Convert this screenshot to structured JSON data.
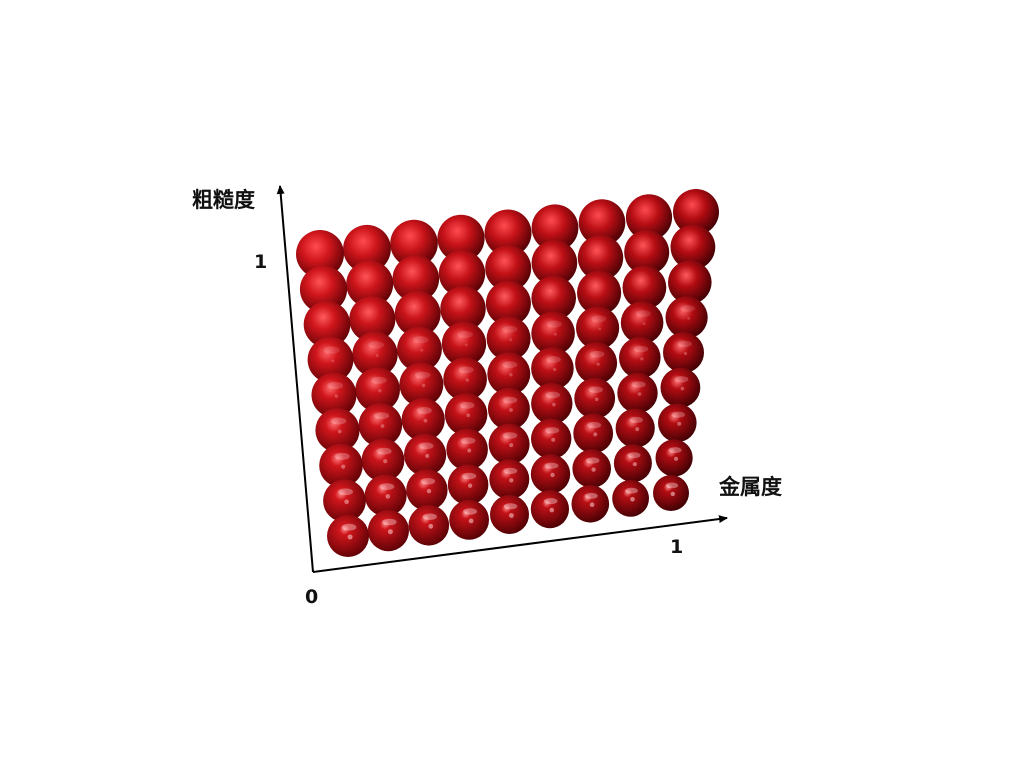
{
  "diagram": {
    "y_axis": {
      "label": "粗糙度",
      "max_tick": "1"
    },
    "x_axis": {
      "label": "金属度",
      "max_tick": "1"
    },
    "origin_tick": "0",
    "grid": {
      "rows": 9,
      "cols": 9,
      "row_variable": "roughness",
      "col_variable": "metalness"
    },
    "colors": {
      "sphere_base": "#d0161c",
      "sphere_dark": "#5a0004",
      "sphere_highlight": "#ff8a8a",
      "axis": "#000000"
    }
  }
}
